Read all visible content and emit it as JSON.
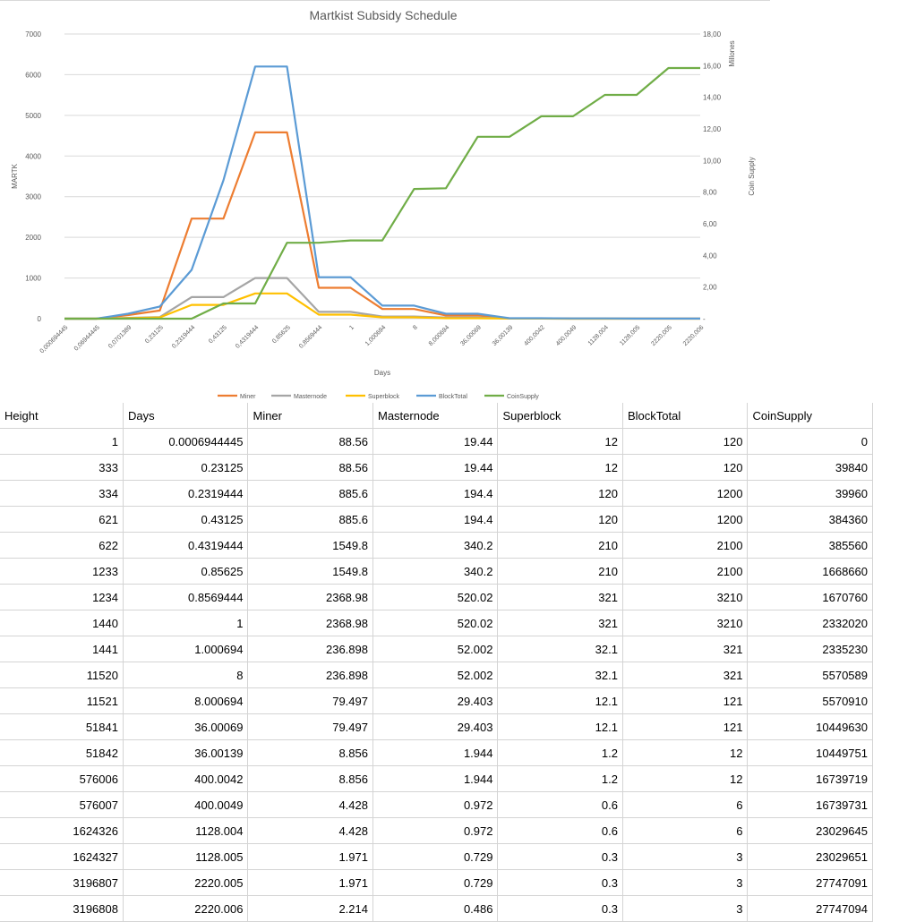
{
  "chart_data": {
    "type": "line",
    "title": "Martkist Subsidy Schedule",
    "xlabel": "Days",
    "ylabel": "MARTK",
    "y2label": "Coin Supply",
    "y2unit": "Millones",
    "ylim": [
      0,
      7000
    ],
    "y2lim": [
      0,
      18
    ],
    "yticks": [
      "0",
      "1000",
      "2000",
      "3000",
      "4000",
      "5000",
      "6000",
      "7000"
    ],
    "y2ticks": [
      "-",
      "2,00",
      "4,00",
      "6,00",
      "8,00",
      "10,00",
      "12,00",
      "14,00",
      "16,00",
      "18,00"
    ],
    "categories": [
      "0,000694445",
      "0,06944445",
      "0,0701389",
      "0,23125",
      "0,2319444",
      "0,43125",
      "0,4319444",
      "0,85625",
      "0,8569444",
      "1",
      "1,000694",
      "8",
      "8,000694",
      "36,00069",
      "36,00139",
      "400,0042",
      "400,0049",
      "1128,004",
      "1128,005",
      "2220,005",
      "2220,006"
    ],
    "grid": true,
    "legend_position": "bottom",
    "series": [
      {
        "name": "Miner",
        "color": "#ed7d31",
        "axis": "left",
        "values": [
          0,
          0,
          88.56,
          200,
          2460,
          2460,
          4580,
          4580,
          760,
          760,
          236.898,
          236.898,
          79.497,
          79.497,
          8.856,
          8.856,
          4.428,
          4.428,
          1.971,
          1.971,
          2.214
        ]
      },
      {
        "name": "Masternode",
        "color": "#a5a5a5",
        "axis": "left",
        "values": [
          0,
          0,
          19.44,
          40,
          530,
          530,
          1000,
          1000,
          167,
          167,
          52.002,
          52.002,
          29.403,
          29.403,
          1.944,
          1.944,
          0.972,
          0.972,
          0.729,
          0.729,
          0.486
        ]
      },
      {
        "name": "Superblock",
        "color": "#ffc000",
        "axis": "left",
        "values": [
          0,
          0,
          12,
          30,
          340,
          340,
          620,
          620,
          100,
          100,
          32.1,
          32.1,
          12.1,
          12.1,
          1.2,
          1.2,
          0.6,
          0.6,
          0.3,
          0.3,
          0.3
        ]
      },
      {
        "name": "BlockTotal",
        "color": "#5b9bd5",
        "axis": "left",
        "values": [
          0,
          0,
          120,
          300,
          1200,
          3400,
          6200,
          6200,
          1020,
          1020,
          321,
          321,
          121,
          121,
          12,
          12,
          6,
          6,
          3,
          3,
          3
        ]
      },
      {
        "name": "CoinSupply",
        "color": "#70ad47",
        "axis": "right",
        "values": [
          0,
          0,
          0,
          0,
          0,
          0.96,
          0.96,
          4.8,
          4.8,
          4.95,
          4.95,
          8.2,
          8.25,
          11.5,
          11.5,
          12.8,
          12.8,
          14.15,
          14.15,
          15.85,
          15.85
        ]
      }
    ]
  },
  "table": {
    "headers": [
      "Height",
      "Days",
      "Miner",
      "Masternode",
      "Superblock",
      "BlockTotal",
      "CoinSupply"
    ],
    "rows": [
      [
        "1",
        "0.0006944445",
        "88.56",
        "19.44",
        "12",
        "120",
        "0"
      ],
      [
        "333",
        "0.23125",
        "88.56",
        "19.44",
        "12",
        "120",
        "39840"
      ],
      [
        "334",
        "0.2319444",
        "885.6",
        "194.4",
        "120",
        "1200",
        "39960"
      ],
      [
        "621",
        "0.43125",
        "885.6",
        "194.4",
        "120",
        "1200",
        "384360"
      ],
      [
        "622",
        "0.4319444",
        "1549.8",
        "340.2",
        "210",
        "2100",
        "385560"
      ],
      [
        "1233",
        "0.85625",
        "1549.8",
        "340.2",
        "210",
        "2100",
        "1668660"
      ],
      [
        "1234",
        "0.8569444",
        "2368.98",
        "520.02",
        "321",
        "3210",
        "1670760"
      ],
      [
        "1440",
        "1",
        "2368.98",
        "520.02",
        "321",
        "3210",
        "2332020"
      ],
      [
        "1441",
        "1.000694",
        "236.898",
        "52.002",
        "32.1",
        "321",
        "2335230"
      ],
      [
        "11520",
        "8",
        "236.898",
        "52.002",
        "32.1",
        "321",
        "5570589"
      ],
      [
        "11521",
        "8.000694",
        "79.497",
        "29.403",
        "12.1",
        "121",
        "5570910"
      ],
      [
        "51841",
        "36.00069",
        "79.497",
        "29.403",
        "12.1",
        "121",
        "10449630"
      ],
      [
        "51842",
        "36.00139",
        "8.856",
        "1.944",
        "1.2",
        "12",
        "10449751"
      ],
      [
        "576006",
        "400.0042",
        "8.856",
        "1.944",
        "1.2",
        "12",
        "16739719"
      ],
      [
        "576007",
        "400.0049",
        "4.428",
        "0.972",
        "0.6",
        "6",
        "16739731"
      ],
      [
        "1624326",
        "1128.004",
        "4.428",
        "0.972",
        "0.6",
        "6",
        "23029645"
      ],
      [
        "1624327",
        "1128.005",
        "1.971",
        "0.729",
        "0.3",
        "3",
        "23029651"
      ],
      [
        "3196807",
        "2220.005",
        "1.971",
        "0.729",
        "0.3",
        "3",
        "27747091"
      ],
      [
        "3196808",
        "2220.006",
        "2.214",
        "0.486",
        "0.3",
        "3",
        "27747094"
      ]
    ]
  }
}
